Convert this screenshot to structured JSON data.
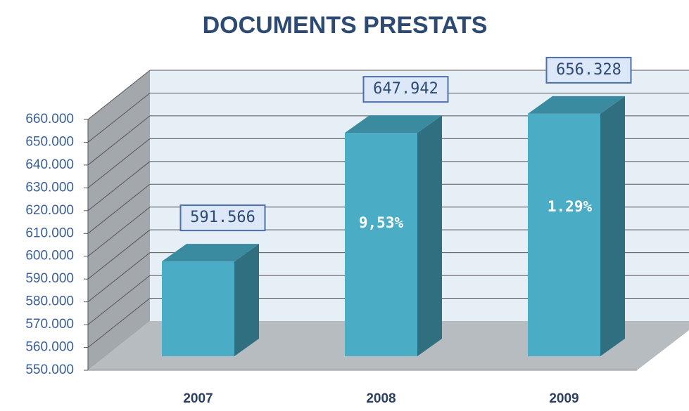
{
  "chart_data": {
    "type": "bar",
    "title": "DOCUMENTS PRESTATS",
    "categories": [
      "2007",
      "2008",
      "2009"
    ],
    "values": [
      591566,
      647942,
      656328
    ],
    "value_labels": [
      "591.566",
      "647.942",
      "656.328"
    ],
    "annotations": [
      "9,53%",
      "1.29%"
    ],
    "color": "#4bacc6",
    "ylim": [
      550000,
      660000
    ],
    "yticks": [
      {
        "value": 550000,
        "label": "550.000"
      },
      {
        "value": 560000,
        "label": "560.000"
      },
      {
        "value": 570000,
        "label": "570.000"
      },
      {
        "value": 580000,
        "label": "580.000"
      },
      {
        "value": 590000,
        "label": "590.000"
      },
      {
        "value": 600000,
        "label": "600.000"
      },
      {
        "value": 610000,
        "label": "610.000"
      },
      {
        "value": 620000,
        "label": "620.000"
      },
      {
        "value": 630000,
        "label": "630.000"
      },
      {
        "value": 640000,
        "label": "640.000"
      },
      {
        "value": 650000,
        "label": "650.000"
      },
      {
        "value": 660000,
        "label": "660.000"
      }
    ],
    "grid": true
  }
}
